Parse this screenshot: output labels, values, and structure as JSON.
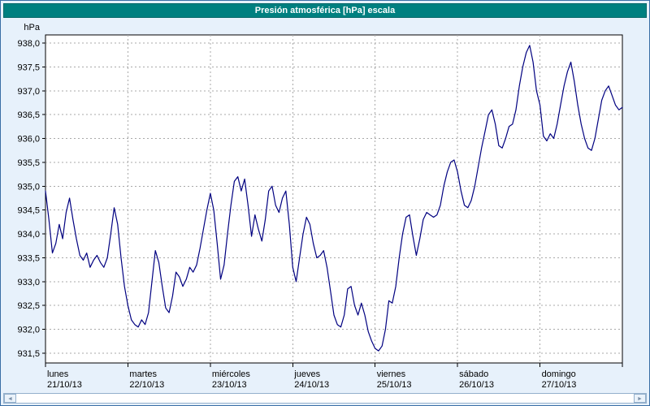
{
  "chart_data": {
    "type": "line",
    "title": "Presión atmosférica [hPa] escala",
    "y_unit": "hPa",
    "ylim": [
      931.5,
      938.0
    ],
    "grid": true,
    "y_ticks": [
      {
        "v": 938.0,
        "label": "938,0"
      },
      {
        "v": 937.5,
        "label": "937,5"
      },
      {
        "v": 937.0,
        "label": "937,0"
      },
      {
        "v": 936.5,
        "label": "936,5"
      },
      {
        "v": 936.0,
        "label": "936,0"
      },
      {
        "v": 935.5,
        "label": "935,5"
      },
      {
        "v": 935.0,
        "label": "935,0"
      },
      {
        "v": 934.5,
        "label": "934,5"
      },
      {
        "v": 934.0,
        "label": "934,0"
      },
      {
        "v": 933.5,
        "label": "933,5"
      },
      {
        "v": 933.0,
        "label": "933,0"
      },
      {
        "v": 932.5,
        "label": "932,5"
      },
      {
        "v": 932.0,
        "label": "932,0"
      },
      {
        "v": 931.5,
        "label": "931,5"
      }
    ],
    "days": [
      {
        "name": "lunes",
        "date": "21/10/13"
      },
      {
        "name": "martes",
        "date": "22/10/13"
      },
      {
        "name": "miércoles",
        "date": "23/10/13"
      },
      {
        "name": "jueves",
        "date": "24/10/13"
      },
      {
        "name": "viernes",
        "date": "25/10/13"
      },
      {
        "name": "sábado",
        "date": "26/10/13"
      },
      {
        "name": "domingo",
        "date": "27/10/13"
      }
    ],
    "x_total_hours": 168,
    "x_step_hours": 1,
    "series": [
      {
        "name": "Presión atmosférica",
        "color": "#000080",
        "values": [
          934.9,
          934.3,
          933.6,
          933.8,
          934.2,
          933.9,
          934.45,
          934.75,
          934.3,
          933.9,
          933.55,
          933.45,
          933.6,
          933.3,
          933.45,
          933.55,
          933.4,
          933.3,
          933.5,
          934.0,
          934.55,
          934.2,
          933.5,
          932.9,
          932.5,
          932.2,
          932.1,
          932.05,
          932.2,
          932.1,
          932.35,
          933.0,
          933.65,
          933.4,
          932.9,
          932.45,
          932.35,
          932.7,
          933.2,
          933.1,
          932.9,
          933.05,
          933.3,
          933.2,
          933.35,
          933.7,
          934.1,
          934.5,
          934.85,
          934.5,
          933.8,
          933.05,
          933.35,
          934.0,
          934.6,
          935.1,
          935.2,
          934.9,
          935.15,
          934.6,
          933.95,
          934.4,
          934.1,
          933.85,
          934.3,
          934.9,
          935.0,
          934.6,
          934.45,
          934.75,
          934.9,
          934.2,
          933.3,
          933.0,
          933.5,
          934.0,
          934.35,
          934.2,
          933.8,
          933.5,
          933.55,
          933.65,
          933.3,
          932.8,
          932.3,
          932.1,
          932.05,
          932.3,
          932.85,
          932.9,
          932.5,
          932.3,
          932.55,
          932.3,
          931.95,
          931.75,
          931.6,
          931.55,
          931.65,
          932.0,
          932.6,
          932.55,
          932.9,
          933.5,
          934.0,
          934.35,
          934.4,
          933.95,
          933.55,
          933.9,
          934.3,
          934.45,
          934.4,
          934.35,
          934.4,
          934.6,
          935.0,
          935.3,
          935.5,
          935.55,
          935.3,
          934.9,
          934.6,
          934.55,
          934.7,
          935.0,
          935.4,
          935.8,
          936.15,
          936.5,
          936.6,
          936.3,
          935.85,
          935.8,
          936.0,
          936.25,
          936.3,
          936.6,
          937.1,
          937.5,
          937.8,
          937.95,
          937.6,
          937.0,
          936.7,
          936.05,
          935.95,
          936.1,
          936.0,
          936.3,
          936.7,
          937.1,
          937.4,
          937.6,
          937.2,
          936.7,
          936.3,
          936.0,
          935.8,
          935.75,
          936.0,
          936.4,
          936.8,
          937.0,
          937.1,
          936.9,
          936.7,
          936.6,
          936.65
        ]
      }
    ]
  },
  "colors": {
    "title_bar": "#008080",
    "background": "#e7f1fb",
    "line": "#000080",
    "grid": "#a9a9a9"
  },
  "icons": {
    "scroll_left": "◄",
    "scroll_right": "►"
  }
}
